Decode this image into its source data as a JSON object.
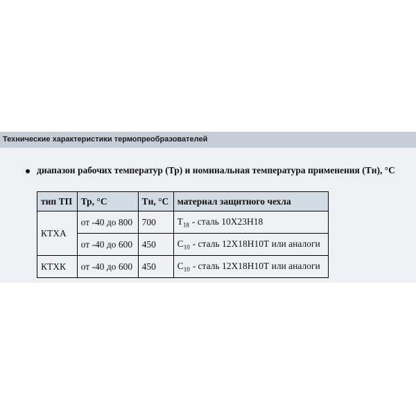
{
  "header": {
    "title": "Технические характеристики термопреобразователей"
  },
  "bullet": "диапазон рабочих температур (Тр) и номинальная температура применения (Тн), °С",
  "table": {
    "columns": [
      "тип ТП",
      "Тр, °С",
      "Тн, °С",
      "материал защитного чехла"
    ],
    "rows": [
      [
        "КТХА",
        "от -40 до 800",
        "700",
        {
          "prefix": "Т",
          "sub": "18",
          "text": "- сталь 10Х23Н18"
        }
      ],
      [
        "от -40 до 600",
        "450",
        {
          "prefix": "С",
          "sub": "10",
          "text": "- сталь 12Х18Н10Т или аналоги"
        }
      ],
      [
        "КТХК",
        "от -40 до 600",
        "450",
        {
          "prefix": "С",
          "sub": "10",
          "text": "- сталь 12Х18Н10Т или аналоги"
        }
      ]
    ]
  }
}
